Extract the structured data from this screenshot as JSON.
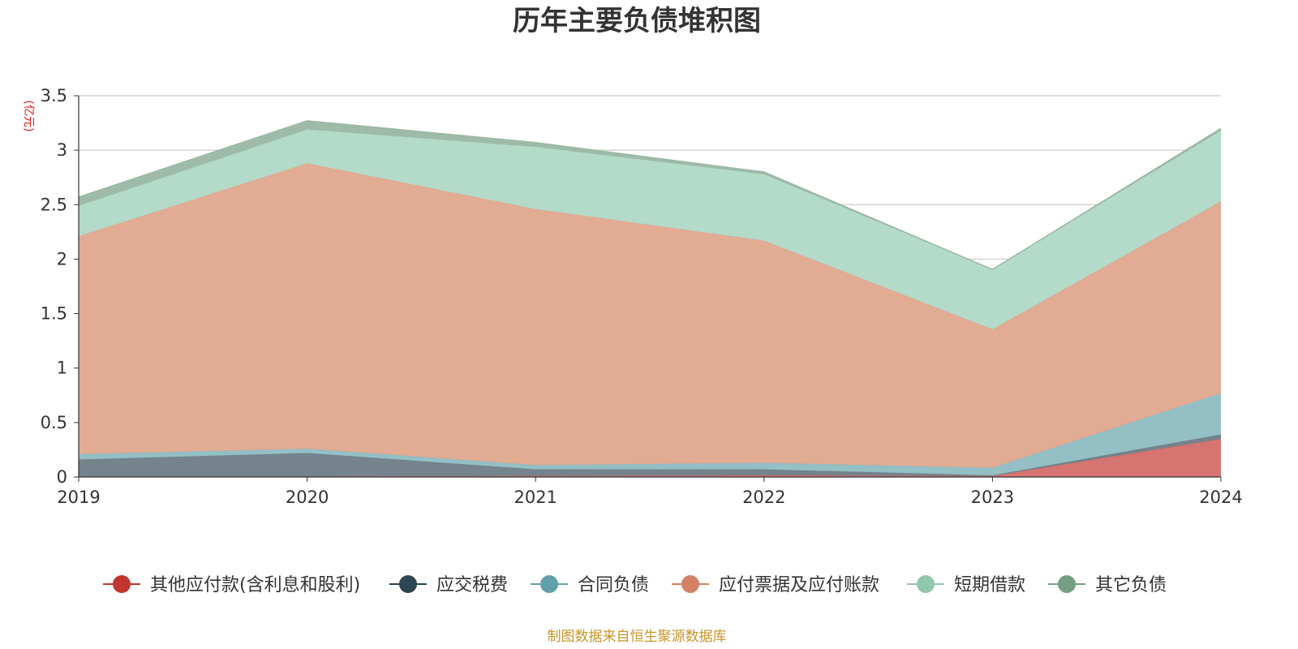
{
  "chart_data": {
    "type": "area",
    "stacked": true,
    "title": "历年主要负债堆积图",
    "unit_label": "(亿元)",
    "x": [
      "2019",
      "2020",
      "2021",
      "2022",
      "2023",
      "2024"
    ],
    "ylim": [
      0,
      3.5
    ],
    "yticks": [
      "0",
      "0.5",
      "1",
      "1.5",
      "2",
      "2.5",
      "3",
      "3.5"
    ],
    "grid": true,
    "legend_position": "bottom",
    "series": [
      {
        "name": "其他应付款(含利息和股利)",
        "color": "#c23531",
        "fill": "#d4706c",
        "values": [
          0.005,
          0.005,
          0.01,
          0.015,
          0.01,
          0.35
        ]
      },
      {
        "name": "应交税费",
        "color": "#2f4554",
        "fill": "#6f7f88",
        "values": [
          0.155,
          0.215,
          0.06,
          0.055,
          0.005,
          0.04
        ]
      },
      {
        "name": "合同负债",
        "color": "#61a0a8",
        "fill": "#91bdc3",
        "values": [
          0.05,
          0.04,
          0.04,
          0.06,
          0.07,
          0.38
        ]
      },
      {
        "name": "应付票据及应付账款",
        "color": "#d48265",
        "fill": "#e0a891",
        "values": [
          2.0,
          2.62,
          2.35,
          2.04,
          1.27,
          1.76
        ]
      },
      {
        "name": "短期借款",
        "color": "#91c7ae",
        "fill": "#b2d9c7",
        "values": [
          0.28,
          0.31,
          0.57,
          0.61,
          0.55,
          0.65
        ]
      },
      {
        "name": "其它负债",
        "color": "#749f83",
        "fill": "#9bb8a5",
        "values": [
          0.08,
          0.08,
          0.04,
          0.02,
          0.0,
          0.02
        ]
      }
    ],
    "source": "制图数据来自恒生聚源数据库"
  }
}
